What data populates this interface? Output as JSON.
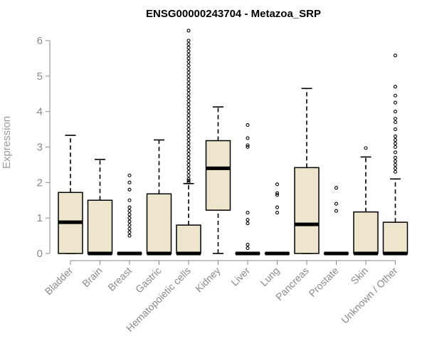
{
  "chart_data": {
    "type": "boxplot",
    "title": "ENSG00000243704 - Metazoa_SRP",
    "xlabel": "",
    "ylabel": "Expression",
    "ylim": [
      0,
      6.3
    ],
    "yticks": [
      0,
      1,
      2,
      3,
      4,
      5,
      6
    ],
    "grid": false,
    "box_color": "#ede6cc",
    "categories": [
      "Bladder",
      "Brain",
      "Breast",
      "Gastric",
      "Hematopoietic cells",
      "Kidney",
      "Liver",
      "Lung",
      "Pancreas",
      "Prostate",
      "Skin",
      "Unknown / Other"
    ],
    "boxes": [
      {
        "name": "Bladder",
        "whisker_low": 0,
        "q1": 0,
        "median": 0.88,
        "q3": 1.72,
        "whisker_high": 3.33,
        "outliers": []
      },
      {
        "name": "Brain",
        "whisker_low": 0,
        "q1": 0,
        "median": 0,
        "q3": 1.5,
        "whisker_high": 2.65,
        "outliers": []
      },
      {
        "name": "Breast",
        "whisker_low": 0,
        "q1": 0,
        "median": 0,
        "q3": 0,
        "whisker_high": 0,
        "outliers": [
          0.5,
          0.6,
          0.7,
          0.8,
          0.9,
          1.0,
          1.1,
          1.2,
          1.3,
          1.5,
          1.8,
          2.0,
          2.2
        ]
      },
      {
        "name": "Gastric",
        "whisker_low": 0,
        "q1": 0,
        "median": 0,
        "q3": 1.68,
        "whisker_high": 3.2,
        "outliers": []
      },
      {
        "name": "Hematopoietic cells",
        "whisker_low": 0,
        "q1": 0,
        "median": 0,
        "q3": 0.8,
        "whisker_high": 1.97,
        "outliers": [
          2.0,
          2.05,
          2.1,
          2.2,
          2.3,
          2.4,
          2.5,
          2.6,
          2.7,
          2.8,
          2.9,
          3.0,
          3.1,
          3.2,
          3.3,
          3.4,
          3.5,
          3.6,
          3.7,
          3.8,
          3.9,
          4.0,
          4.1,
          4.2,
          4.3,
          4.4,
          4.5,
          4.6,
          4.7,
          4.8,
          4.9,
          5.0,
          5.1,
          5.2,
          5.3,
          5.4,
          5.5,
          5.6,
          5.7,
          5.8,
          5.9,
          6.0,
          6.28
        ]
      },
      {
        "name": "Kidney",
        "whisker_low": 0,
        "q1": 1.22,
        "median": 2.4,
        "q3": 3.18,
        "whisker_high": 4.13,
        "outliers": []
      },
      {
        "name": "Liver",
        "whisker_low": 0,
        "q1": 0,
        "median": 0,
        "q3": 0,
        "whisker_high": 0,
        "outliers": [
          0.15,
          0.25,
          0.85,
          0.95,
          1.15,
          3.0,
          3.05,
          3.25,
          3.62
        ]
      },
      {
        "name": "Lung",
        "whisker_low": 0,
        "q1": 0,
        "median": 0,
        "q3": 0,
        "whisker_high": 0,
        "outliers": [
          1.15,
          1.3,
          1.65,
          1.7,
          1.95
        ]
      },
      {
        "name": "Pancreas",
        "whisker_low": 0,
        "q1": 0,
        "median": 0.82,
        "q3": 2.42,
        "whisker_high": 4.65,
        "outliers": []
      },
      {
        "name": "Prostate",
        "whisker_low": 0,
        "q1": 0,
        "median": 0,
        "q3": 0,
        "whisker_high": 0,
        "outliers": [
          1.2,
          1.4,
          1.85
        ]
      },
      {
        "name": "Skin",
        "whisker_low": 0,
        "q1": 0,
        "median": 0,
        "q3": 1.17,
        "whisker_high": 2.72,
        "outliers": [
          2.97
        ]
      },
      {
        "name": "Unknown / Other",
        "whisker_low": 0,
        "q1": 0,
        "median": 0,
        "q3": 0.88,
        "whisker_high": 2.1,
        "outliers": [
          2.3,
          2.4,
          2.5,
          2.6,
          2.7,
          2.85,
          3.0,
          3.1,
          3.2,
          3.3,
          3.5,
          3.7,
          3.8,
          4.0,
          4.25,
          4.45,
          4.7,
          5.58
        ]
      }
    ]
  }
}
